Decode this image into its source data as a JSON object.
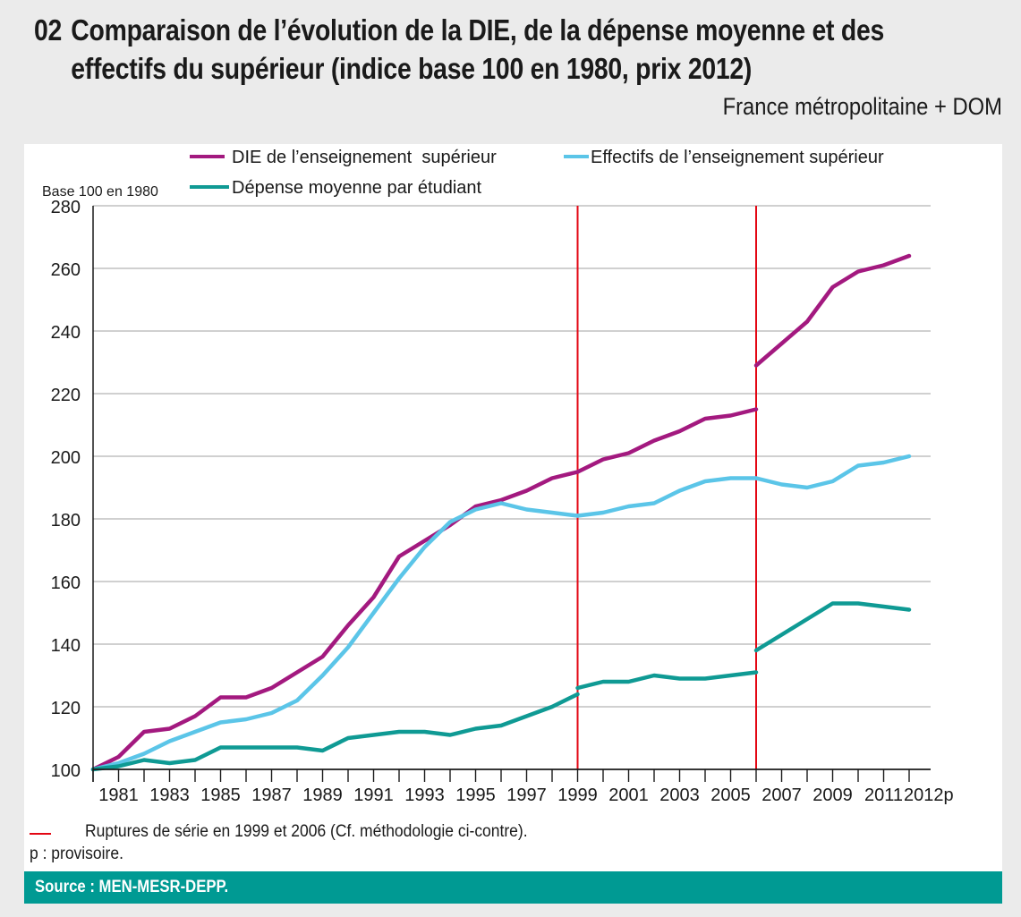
{
  "header": {
    "number": "02",
    "title_line1": "Comparaison de l’évolution de la DIE, de la dépense moyenne et des",
    "title_line2": "effectifs du supérieur (indice base 100 en 1980, prix 2012)",
    "subtitle": "France métropolitaine + DOM"
  },
  "colors": {
    "background": "#ebebeb",
    "die": "#a3197f",
    "effectifs": "#5bc5e8",
    "depense": "#0f9a94",
    "rupture": "#e30613",
    "source_bar": "#009a93",
    "grid": "#b3b3b3"
  },
  "notes": {
    "rupture": "Ruptures de série en 1999 et 2006 (Cf. méthodologie ci-contre).",
    "provisoire": "p : provisoire."
  },
  "source": "Source : MEN-MESR-DEPP.",
  "chart_data": {
    "type": "line",
    "title": "Comparaison de l’évolution de la DIE, de la dépense moyenne et des effectifs du supérieur (indice base 100 en 1980, prix 2012)",
    "ylabel": "Base 100 en 1980",
    "xlabel": "",
    "ylim": [
      100,
      280
    ],
    "yticks": [
      100,
      120,
      140,
      160,
      180,
      200,
      220,
      240,
      260,
      280
    ],
    "xlim": [
      1980,
      2012
    ],
    "xtick_labels": [
      {
        "year": 1981,
        "label": "1981"
      },
      {
        "year": 1983,
        "label": "1983"
      },
      {
        "year": 1985,
        "label": "1985"
      },
      {
        "year": 1987,
        "label": "1987"
      },
      {
        "year": 1989,
        "label": "1989"
      },
      {
        "year": 1991,
        "label": "1991"
      },
      {
        "year": 1993,
        "label": "1993"
      },
      {
        "year": 1995,
        "label": "1995"
      },
      {
        "year": 1997,
        "label": "1997"
      },
      {
        "year": 1999,
        "label": "1999"
      },
      {
        "year": 2001,
        "label": "2001"
      },
      {
        "year": 2003,
        "label": "2003"
      },
      {
        "year": 2005,
        "label": "2005"
      },
      {
        "year": 2007,
        "label": "2007"
      },
      {
        "year": 2009,
        "label": "2009"
      },
      {
        "year": 2011,
        "label": "2011"
      },
      {
        "year": 2012,
        "label": "2012p"
      }
    ],
    "grid": true,
    "legend_position": "top",
    "series_breaks": [
      1999,
      2006
    ],
    "series": [
      {
        "name": "DIE de l’enseignement  supérieur",
        "key": "die",
        "segments": [
          {
            "x": [
              1980,
              1981,
              1982,
              1983,
              1984,
              1985,
              1986,
              1987,
              1988,
              1989,
              1990,
              1991,
              1992,
              1993,
              1994,
              1995,
              1996,
              1997,
              1998,
              1999
            ],
            "y": [
              100,
              104,
              112,
              113,
              117,
              123,
              123,
              126,
              131,
              136,
              146,
              155,
              168,
              173,
              178,
              184,
              186,
              189,
              193,
              195
            ]
          },
          {
            "x": [
              1999,
              2000,
              2001,
              2002,
              2003,
              2004,
              2005,
              2006
            ],
            "y": [
              195,
              199,
              201,
              205,
              208,
              212,
              213,
              215
            ]
          },
          {
            "x": [
              2006,
              2007,
              2008,
              2009,
              2010,
              2011,
              2012
            ],
            "y": [
              229,
              236,
              243,
              254,
              259,
              261,
              264
            ]
          }
        ]
      },
      {
        "name": "Effectifs de l’enseignement supérieur",
        "key": "effectifs",
        "segments": [
          {
            "x": [
              1980,
              1981,
              1982,
              1983,
              1984,
              1985,
              1986,
              1987,
              1988,
              1989,
              1990,
              1991,
              1992,
              1993,
              1994,
              1995,
              1996,
              1997,
              1998,
              1999
            ],
            "y": [
              100,
              102,
              105,
              109,
              112,
              115,
              116,
              118,
              122,
              130,
              139,
              150,
              161,
              171,
              179,
              183,
              185,
              183,
              182,
              181
            ]
          },
          {
            "x": [
              1999,
              2000,
              2001,
              2002,
              2003,
              2004,
              2005,
              2006
            ],
            "y": [
              181,
              182,
              184,
              185,
              189,
              192,
              193,
              193
            ]
          },
          {
            "x": [
              2006,
              2007,
              2008,
              2009,
              2010,
              2011,
              2012
            ],
            "y": [
              193,
              191,
              190,
              192,
              197,
              198,
              200
            ]
          }
        ]
      },
      {
        "name": "Dépense moyenne par étudiant",
        "key": "depense",
        "segments": [
          {
            "x": [
              1980,
              1981,
              1982,
              1983,
              1984,
              1985,
              1986,
              1987,
              1988,
              1989,
              1990,
              1991,
              1992,
              1993,
              1994,
              1995,
              1996,
              1997,
              1998,
              1999
            ],
            "y": [
              100,
              101,
              103,
              102,
              103,
              107,
              107,
              107,
              107,
              106,
              110,
              111,
              112,
              112,
              111,
              113,
              114,
              117,
              120,
              124
            ]
          },
          {
            "x": [
              1999,
              2000,
              2001,
              2002,
              2003,
              2004,
              2005,
              2006
            ],
            "y": [
              126,
              128,
              128,
              130,
              129,
              129,
              130,
              131
            ]
          },
          {
            "x": [
              2006,
              2007,
              2008,
              2009,
              2010,
              2011,
              2012
            ],
            "y": [
              138,
              143,
              148,
              153,
              153,
              152,
              151
            ]
          }
        ]
      }
    ]
  }
}
